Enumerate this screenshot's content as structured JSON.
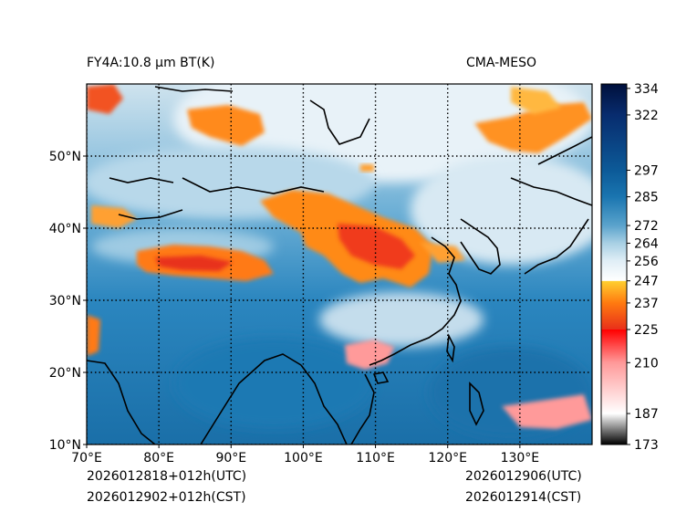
{
  "title_left": "FY4A:10.8 μm BT(K)",
  "title_right": "CMA-MESO",
  "footer": {
    "init_utc": "2026012818+012h(UTC)",
    "init_cst": "2026012902+012h(CST)",
    "valid_utc": "2026012906(UTC)",
    "valid_cst": "2026012914(CST)"
  },
  "map": {
    "lon_range": [
      70,
      140
    ],
    "lat_range": [
      10,
      60
    ],
    "lon_ticks": [
      {
        "value": 70,
        "label": "70°E"
      },
      {
        "value": 80,
        "label": "80°E"
      },
      {
        "value": 90,
        "label": "90°E"
      },
      {
        "value": 100,
        "label": "100°E"
      },
      {
        "value": 110,
        "label": "110°E"
      },
      {
        "value": 120,
        "label": "120°E"
      },
      {
        "value": 130,
        "label": "130°E"
      }
    ],
    "lat_ticks": [
      {
        "value": 10,
        "label": "10°N"
      },
      {
        "value": 20,
        "label": "20°N"
      },
      {
        "value": 30,
        "label": "30°N"
      },
      {
        "value": 40,
        "label": "40°N"
      },
      {
        "value": 50,
        "label": "50°N"
      }
    ]
  },
  "colorbar": {
    "min": 173,
    "max": 336,
    "ticks": [
      {
        "value": 334,
        "label": "334"
      },
      {
        "value": 322,
        "label": "322"
      },
      {
        "value": 297,
        "label": "297"
      },
      {
        "value": 285,
        "label": "285"
      },
      {
        "value": 272,
        "label": "272"
      },
      {
        "value": 264,
        "label": "264"
      },
      {
        "value": 256,
        "label": "256"
      },
      {
        "value": 247,
        "label": "247"
      },
      {
        "value": 237,
        "label": "237"
      },
      {
        "value": 225,
        "label": "225"
      },
      {
        "value": 210,
        "label": "210"
      },
      {
        "value": 187,
        "label": "187"
      },
      {
        "value": 173,
        "label": "173"
      }
    ],
    "stops": [
      {
        "value": 173,
        "color": "#000000"
      },
      {
        "value": 187,
        "color": "#ffffff"
      },
      {
        "value": 210,
        "color": "#ff9999"
      },
      {
        "value": 224.9,
        "color": "#ff0000"
      },
      {
        "value": 225,
        "color": "#e8301a"
      },
      {
        "value": 237,
        "color": "#ff7a10"
      },
      {
        "value": 246.9,
        "color": "#ffd030"
      },
      {
        "value": 247,
        "color": "#ffffff"
      },
      {
        "value": 256,
        "color": "#e0eef6"
      },
      {
        "value": 264,
        "color": "#a8d0e4"
      },
      {
        "value": 272,
        "color": "#5aa3cc"
      },
      {
        "value": 285,
        "color": "#1a75b0"
      },
      {
        "value": 297,
        "color": "#0c5a98"
      },
      {
        "value": 322,
        "color": "#082c6e"
      },
      {
        "value": 336,
        "color": "#00103c"
      }
    ]
  }
}
